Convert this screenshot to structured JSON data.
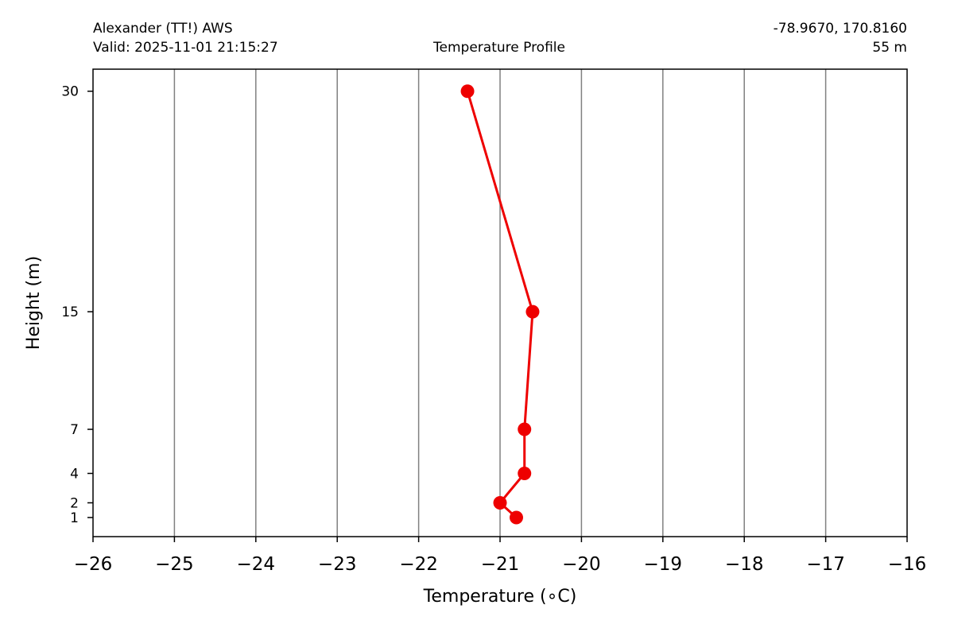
{
  "header": {
    "station": "Alexander (TT!) AWS",
    "valid": "Valid: 2025-11-01 21:15:27",
    "title": "Temperature Profile",
    "coords": "-78.9670, 170.8160",
    "elevation": "55 m"
  },
  "chart_data": {
    "type": "line",
    "xlabel": "Temperature (∘C)",
    "ylabel": "Height (m)",
    "xlim": [
      -26,
      -16
    ],
    "ylim": [
      -0.3,
      31.5
    ],
    "x_ticks": [
      -26,
      -25,
      -24,
      -23,
      -22,
      -21,
      -20,
      -19,
      -18,
      -17,
      -16
    ],
    "y_ticks": [
      1,
      2,
      4,
      7,
      15,
      30
    ],
    "grid": "vertical",
    "colors": {
      "line": "#ee0000",
      "grid": "#808080"
    },
    "series": [
      {
        "points": [
          {
            "temp": -20.8,
            "height": 1
          },
          {
            "temp": -21.0,
            "height": 2
          },
          {
            "temp": -20.7,
            "height": 4
          },
          {
            "temp": -20.7,
            "height": 7
          },
          {
            "temp": -20.6,
            "height": 15
          },
          {
            "temp": -21.4,
            "height": 30
          }
        ]
      }
    ]
  }
}
